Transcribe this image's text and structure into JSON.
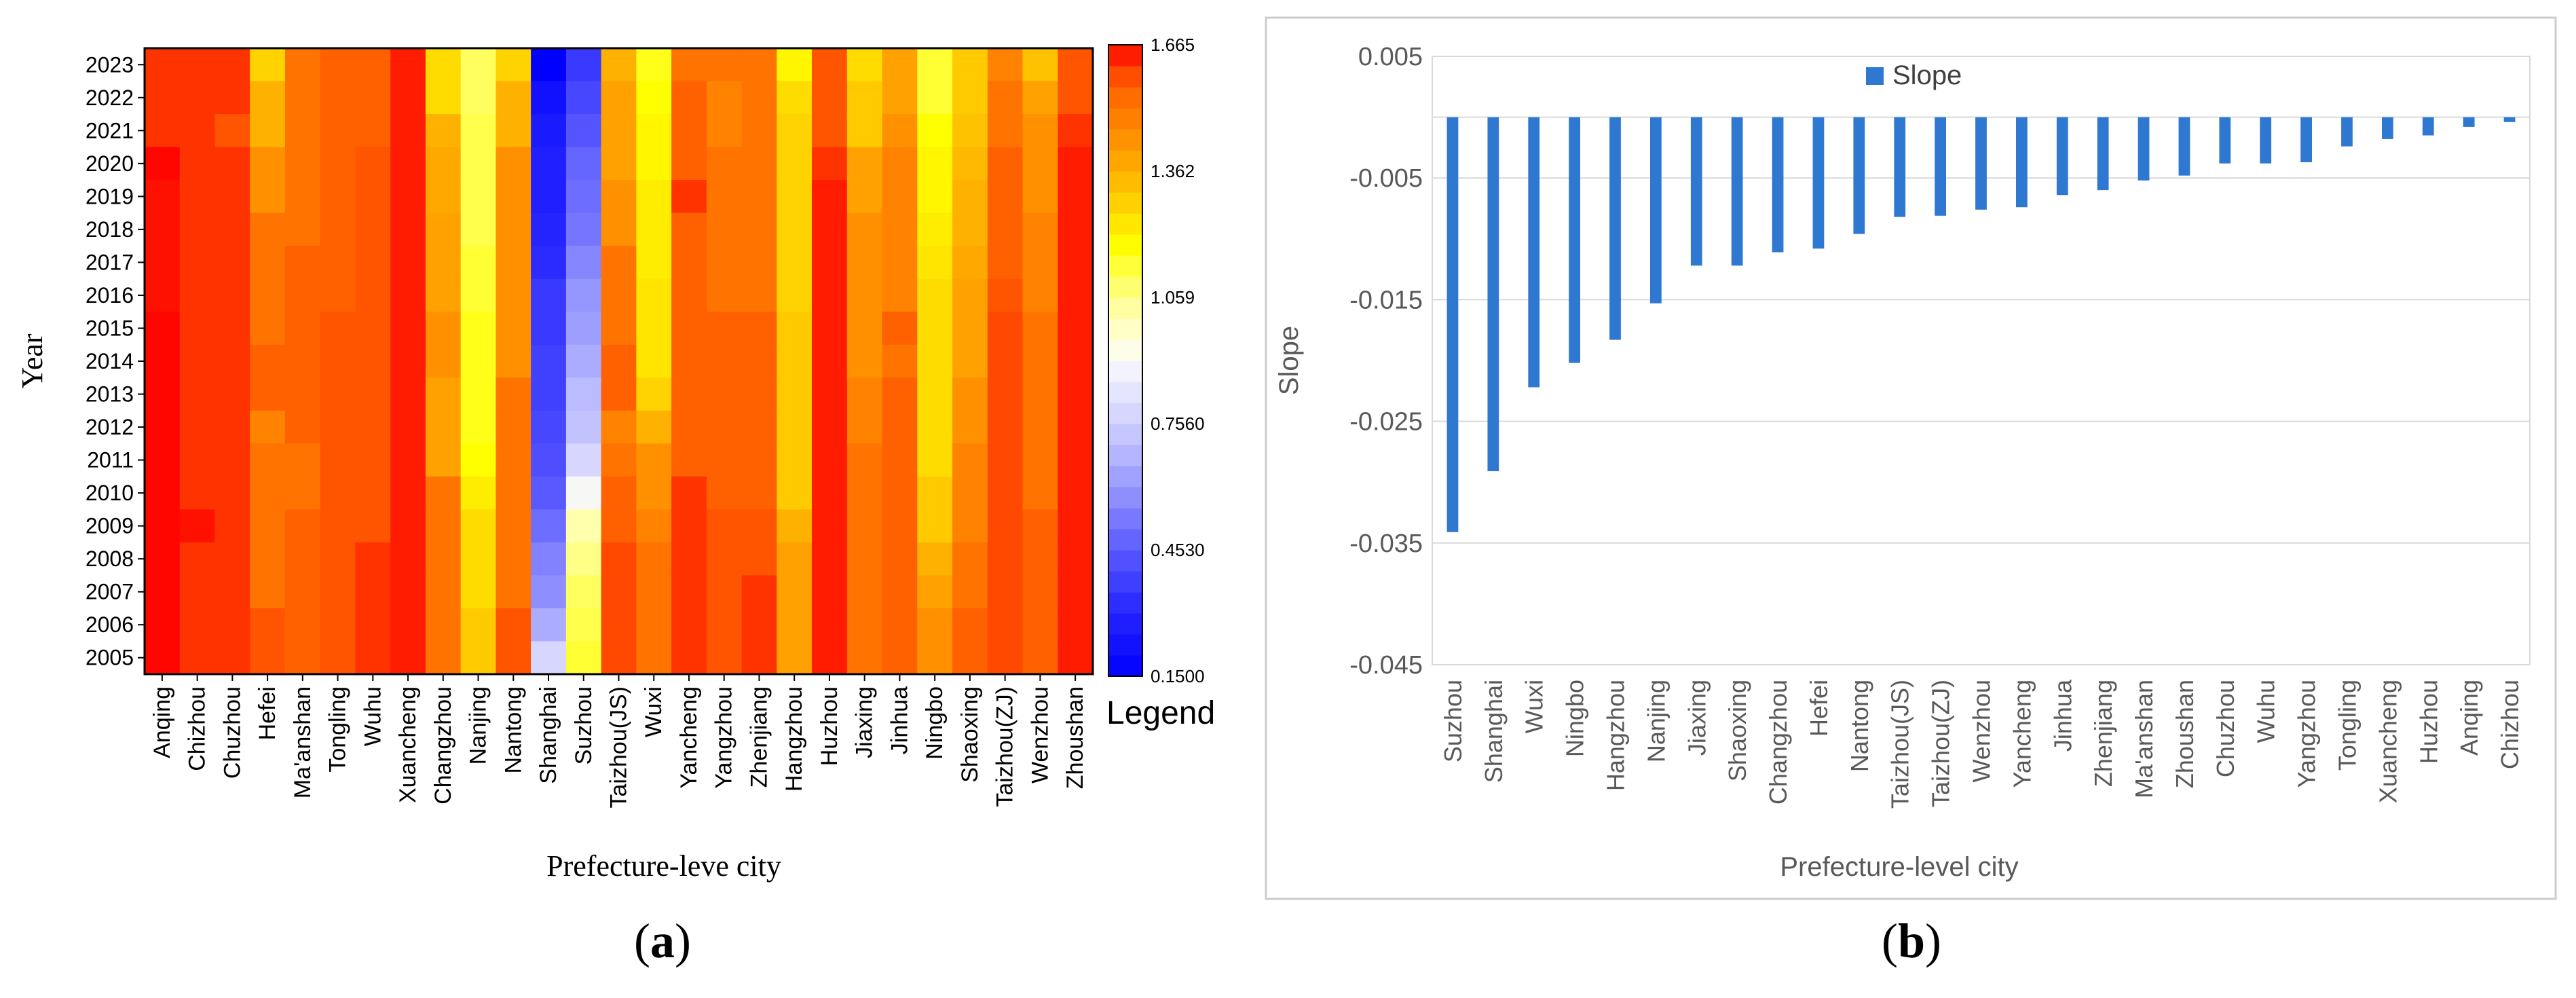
{
  "panel_labels": {
    "a": "(a)",
    "b": "(b)"
  },
  "colors": {
    "panel_border": "#cccccc",
    "slope_bar": "#2f78d1",
    "axis_text": "#595959",
    "grid": "#d9d9d9"
  },
  "chart_data": [
    {
      "id": "heatmap",
      "type": "heatmap",
      "title": "",
      "xlabel": "Prefecture-leve city",
      "ylabel": "Year",
      "x": [
        "Anqing",
        "Chizhou",
        "Chuzhou",
        "Hefei",
        "Ma'anshan",
        "Tongling",
        "Wuhu",
        "Xuancheng",
        "Changzhou",
        "Nanjing",
        "Nantong",
        "Shanghai",
        "Suzhou",
        "Taizhou(JS)",
        "Wuxi",
        "Yancheng",
        "Yangzhou",
        "Zhenjiang",
        "Hangzhou",
        "Huzhou",
        "Jiaxing",
        "Jinhua",
        "Ningbo",
        "Shaoxing",
        "Taizhou(ZJ)",
        "Wenzhou",
        "Zhoushan"
      ],
      "y": [
        "2023",
        "2022",
        "2021",
        "2020",
        "2019",
        "2018",
        "2017",
        "2016",
        "2015",
        "2014",
        "2013",
        "2012",
        "2011",
        "2010",
        "2009",
        "2008",
        "2007",
        "2006",
        "2005"
      ],
      "vmin": 0.15,
      "vmax": 1.665,
      "legend": {
        "title": "Legend",
        "ticks": [
          "1.665",
          "1.362",
          "1.059",
          "0.7560",
          "0.4530",
          "0.1500"
        ],
        "tick_values": [
          1.665,
          1.362,
          1.059,
          0.756,
          0.453,
          0.15
        ]
      },
      "colormap": [
        [
          0.0,
          "#0000ff"
        ],
        [
          0.1,
          "#2424ff"
        ],
        [
          0.2,
          "#5a5aff"
        ],
        [
          0.3,
          "#9898ff"
        ],
        [
          0.4,
          "#cfcfff"
        ],
        [
          0.48,
          "#f2f2ff"
        ],
        [
          0.52,
          "#ffffe6"
        ],
        [
          0.58,
          "#ffffa6"
        ],
        [
          0.64,
          "#ffff4d"
        ],
        [
          0.68,
          "#ffff00"
        ],
        [
          0.74,
          "#ffd700"
        ],
        [
          0.8,
          "#ffb000"
        ],
        [
          0.86,
          "#ff8c00"
        ],
        [
          0.92,
          "#ff6a00"
        ],
        [
          0.96,
          "#ff4500"
        ],
        [
          1.0,
          "#ff0000"
        ]
      ],
      "column_values": [
        [
          1.62,
          1.62,
          1.62,
          1.66,
          1.65,
          1.65,
          1.65,
          1.65,
          1.66,
          1.66,
          1.66,
          1.66,
          1.66,
          1.66,
          1.66,
          1.66,
          1.66,
          1.66,
          1.66
        ],
        [
          1.62,
          1.62,
          1.62,
          1.62,
          1.62,
          1.62,
          1.62,
          1.62,
          1.62,
          1.62,
          1.62,
          1.62,
          1.62,
          1.62,
          1.65,
          1.62,
          1.62,
          1.62,
          1.62
        ],
        [
          1.62,
          1.62,
          1.58,
          1.62,
          1.62,
          1.62,
          1.62,
          1.62,
          1.62,
          1.62,
          1.62,
          1.62,
          1.62,
          1.62,
          1.62,
          1.62,
          1.62,
          1.62,
          1.62
        ],
        [
          1.28,
          1.36,
          1.36,
          1.44,
          1.44,
          1.52,
          1.52,
          1.52,
          1.52,
          1.56,
          1.56,
          1.48,
          1.52,
          1.52,
          1.52,
          1.52,
          1.52,
          1.58,
          1.58
        ],
        [
          1.52,
          1.52,
          1.52,
          1.52,
          1.52,
          1.52,
          1.56,
          1.56,
          1.56,
          1.56,
          1.56,
          1.56,
          1.52,
          1.52,
          1.56,
          1.56,
          1.56,
          1.56,
          1.56
        ],
        [
          1.56,
          1.56,
          1.56,
          1.56,
          1.56,
          1.56,
          1.56,
          1.56,
          1.58,
          1.58,
          1.58,
          1.58,
          1.58,
          1.58,
          1.58,
          1.58,
          1.58,
          1.58,
          1.58
        ],
        [
          1.56,
          1.56,
          1.56,
          1.58,
          1.58,
          1.58,
          1.58,
          1.58,
          1.58,
          1.58,
          1.58,
          1.58,
          1.58,
          1.58,
          1.58,
          1.62,
          1.62,
          1.62,
          1.62
        ],
        [
          1.64,
          1.64,
          1.64,
          1.64,
          1.64,
          1.64,
          1.64,
          1.64,
          1.64,
          1.64,
          1.64,
          1.64,
          1.64,
          1.64,
          1.64,
          1.64,
          1.64,
          1.64,
          1.64
        ],
        [
          1.26,
          1.26,
          1.36,
          1.38,
          1.38,
          1.4,
          1.4,
          1.4,
          1.44,
          1.44,
          1.4,
          1.4,
          1.4,
          1.52,
          1.52,
          1.52,
          1.52,
          1.52,
          1.52
        ],
        [
          1.1,
          1.1,
          1.12,
          1.12,
          1.12,
          1.12,
          1.14,
          1.14,
          1.16,
          1.16,
          1.16,
          1.16,
          1.18,
          1.22,
          1.26,
          1.26,
          1.26,
          1.3,
          1.3
        ],
        [
          1.28,
          1.36,
          1.36,
          1.44,
          1.44,
          1.44,
          1.44,
          1.44,
          1.44,
          1.44,
          1.52,
          1.52,
          1.52,
          1.52,
          1.52,
          1.52,
          1.52,
          1.58,
          1.58
        ],
        [
          0.15,
          0.22,
          0.26,
          0.28,
          0.28,
          0.3,
          0.32,
          0.36,
          0.36,
          0.38,
          0.38,
          0.4,
          0.42,
          0.45,
          0.5,
          0.55,
          0.58,
          0.66,
          0.78
        ],
        [
          0.36,
          0.4,
          0.44,
          0.48,
          0.5,
          0.52,
          0.56,
          0.6,
          0.62,
          0.66,
          0.7,
          0.72,
          0.78,
          0.9,
          1.02,
          1.06,
          1.1,
          1.12,
          1.14
        ],
        [
          1.36,
          1.4,
          1.4,
          1.4,
          1.44,
          1.44,
          1.52,
          1.52,
          1.52,
          1.56,
          1.56,
          1.48,
          1.52,
          1.56,
          1.56,
          1.6,
          1.6,
          1.6,
          1.6
        ],
        [
          1.16,
          1.18,
          1.2,
          1.2,
          1.22,
          1.22,
          1.22,
          1.24,
          1.24,
          1.24,
          1.28,
          1.36,
          1.44,
          1.44,
          1.48,
          1.52,
          1.52,
          1.52,
          1.52
        ],
        [
          1.52,
          1.56,
          1.56,
          1.56,
          1.62,
          1.56,
          1.56,
          1.56,
          1.56,
          1.56,
          1.56,
          1.56,
          1.56,
          1.62,
          1.62,
          1.62,
          1.62,
          1.62,
          1.62
        ],
        [
          1.52,
          1.48,
          1.48,
          1.52,
          1.52,
          1.52,
          1.52,
          1.52,
          1.56,
          1.56,
          1.56,
          1.56,
          1.56,
          1.56,
          1.58,
          1.58,
          1.58,
          1.58,
          1.58
        ],
        [
          1.52,
          1.52,
          1.52,
          1.52,
          1.52,
          1.52,
          1.52,
          1.52,
          1.56,
          1.56,
          1.56,
          1.56,
          1.56,
          1.56,
          1.58,
          1.58,
          1.62,
          1.62,
          1.62
        ],
        [
          1.2,
          1.26,
          1.28,
          1.28,
          1.28,
          1.28,
          1.28,
          1.28,
          1.3,
          1.3,
          1.3,
          1.3,
          1.3,
          1.3,
          1.36,
          1.4,
          1.4,
          1.4,
          1.4
        ],
        [
          1.58,
          1.58,
          1.58,
          1.62,
          1.64,
          1.64,
          1.64,
          1.64,
          1.64,
          1.64,
          1.64,
          1.64,
          1.64,
          1.64,
          1.64,
          1.64,
          1.64,
          1.64,
          1.64
        ],
        [
          1.26,
          1.3,
          1.3,
          1.4,
          1.4,
          1.44,
          1.44,
          1.44,
          1.44,
          1.44,
          1.48,
          1.48,
          1.52,
          1.52,
          1.52,
          1.52,
          1.52,
          1.52,
          1.52
        ],
        [
          1.4,
          1.4,
          1.44,
          1.48,
          1.48,
          1.48,
          1.48,
          1.48,
          1.56,
          1.52,
          1.56,
          1.56,
          1.56,
          1.56,
          1.56,
          1.56,
          1.56,
          1.56,
          1.56
        ],
        [
          1.14,
          1.14,
          1.18,
          1.2,
          1.2,
          1.22,
          1.24,
          1.26,
          1.26,
          1.26,
          1.26,
          1.26,
          1.26,
          1.3,
          1.3,
          1.36,
          1.4,
          1.44,
          1.44
        ],
        [
          1.3,
          1.3,
          1.32,
          1.34,
          1.36,
          1.36,
          1.38,
          1.4,
          1.4,
          1.4,
          1.44,
          1.44,
          1.48,
          1.48,
          1.48,
          1.52,
          1.52,
          1.56,
          1.56
        ],
        [
          1.48,
          1.52,
          1.52,
          1.56,
          1.56,
          1.56,
          1.56,
          1.58,
          1.6,
          1.6,
          1.6,
          1.6,
          1.6,
          1.6,
          1.6,
          1.6,
          1.6,
          1.6,
          1.6
        ],
        [
          1.32,
          1.4,
          1.44,
          1.44,
          1.44,
          1.48,
          1.48,
          1.48,
          1.52,
          1.52,
          1.52,
          1.52,
          1.52,
          1.52,
          1.56,
          1.56,
          1.56,
          1.56,
          1.56
        ],
        [
          1.58,
          1.58,
          1.62,
          1.64,
          1.64,
          1.64,
          1.64,
          1.64,
          1.64,
          1.64,
          1.64,
          1.64,
          1.64,
          1.64,
          1.64,
          1.64,
          1.64,
          1.64,
          1.64
        ]
      ]
    },
    {
      "id": "slope",
      "type": "bar",
      "title": "",
      "xlabel": "Prefecture-level city",
      "ylabel": "Slope",
      "legend": "Slope",
      "ylim": [
        -0.045,
        0.005
      ],
      "yticks": [
        "0.005",
        "-0.005",
        "-0.015",
        "-0.025",
        "-0.035",
        "-0.045"
      ],
      "ytick_values": [
        0.005,
        -0.005,
        -0.015,
        -0.025,
        -0.035,
        -0.045
      ],
      "grid": true,
      "categories": [
        "Suzhou",
        "Shanghai",
        "Wuxi",
        "Ningbo",
        "Hangzhou",
        "Nanjing",
        "Jiaxing",
        "Shaoxing",
        "Changzhou",
        "Hefei",
        "Nantong",
        "Taizhou(JS)",
        "Taizhou(ZJ)",
        "Wenzhou",
        "Yancheng",
        "Jinhua",
        "Zhenjiang",
        "Ma'anshan",
        "Zhoushan",
        "Chuzhou",
        "Wuhu",
        "Yangzhou",
        "Tongling",
        "Xuancheng",
        "Huzhou",
        "Anqing",
        "Chizhou"
      ],
      "values": [
        -0.0341,
        -0.0291,
        -0.0222,
        -0.0202,
        -0.0183,
        -0.0153,
        -0.0122,
        -0.0122,
        -0.0111,
        -0.0108,
        -0.0096,
        -0.0082,
        -0.0081,
        -0.0076,
        -0.0074,
        -0.0064,
        -0.006,
        -0.0052,
        -0.0048,
        -0.0038,
        -0.0038,
        -0.0037,
        -0.0024,
        -0.0018,
        -0.0015,
        -0.0008,
        -0.0004
      ]
    }
  ]
}
